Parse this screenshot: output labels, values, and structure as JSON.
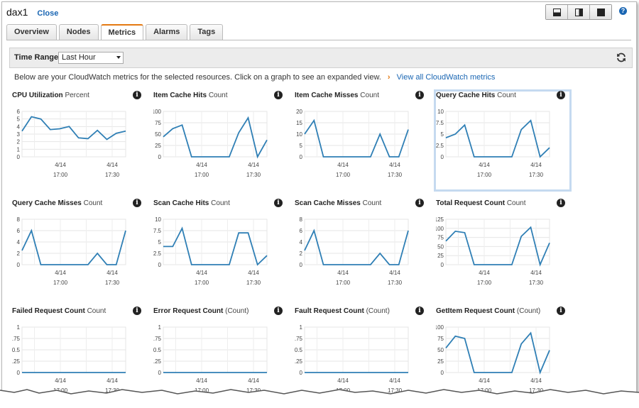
{
  "header": {
    "resource_name": "dax1",
    "close_label": "Close"
  },
  "view_buttons": [
    "bottom-pane-icon",
    "side-pane-icon",
    "full-screen-icon"
  ],
  "tabs": [
    {
      "label": "Overview",
      "active": false
    },
    {
      "label": "Nodes",
      "active": false
    },
    {
      "label": "Metrics",
      "active": true
    },
    {
      "label": "Alarms",
      "active": false
    },
    {
      "label": "Tags",
      "active": false
    }
  ],
  "toolbar": {
    "time_range_label": "Time Range:",
    "time_range_value": "Last Hour"
  },
  "info": {
    "text": "Below are your CloudWatch metrics for the selected resources. Click on a graph to see an expanded view.",
    "chevron": "›",
    "link": "View all CloudWatch metrics"
  },
  "colors": {
    "line": "#2f7fb5",
    "accent": "#e47911",
    "link": "#1a66b3",
    "selected_outline": "#c5daf0"
  },
  "x_ticks": [
    {
      "date": "4/14",
      "time": "17:00"
    },
    {
      "date": "4/14",
      "time": "17:30"
    }
  ],
  "chart_data": [
    {
      "type": "line",
      "title": "CPU Utilization",
      "unit": "Percent",
      "ylim": [
        0,
        6
      ],
      "yticks": [
        "0",
        "1",
        "2",
        "3",
        "4",
        "5",
        "6"
      ],
      "values": [
        3.4,
        5.3,
        5.0,
        3.6,
        3.7,
        4.0,
        2.5,
        2.4,
        3.5,
        2.3,
        3.1,
        3.4
      ]
    },
    {
      "type": "line",
      "title": "Item Cache Hits",
      "unit": "Count",
      "ylim": [
        0,
        100
      ],
      "yticks": [
        "0",
        "25",
        "50",
        "75",
        "100"
      ],
      "values": [
        44,
        62,
        70,
        0,
        0,
        0,
        0,
        0,
        53,
        86,
        0,
        37
      ]
    },
    {
      "type": "line",
      "title": "Item Cache Misses",
      "unit": "Count",
      "ylim": [
        0,
        20
      ],
      "yticks": [
        "0",
        "5",
        "10",
        "15",
        "20"
      ],
      "values": [
        10,
        16,
        0,
        0,
        0,
        0,
        0,
        0,
        10,
        0,
        0,
        12
      ]
    },
    {
      "type": "line",
      "title": "Query Cache Hits",
      "unit": "Count",
      "ylim": [
        0,
        10
      ],
      "yticks": [
        "0",
        "2.5",
        "5",
        "7.5",
        "10"
      ],
      "selected": true,
      "values": [
        4.2,
        5.0,
        7.0,
        0,
        0,
        0,
        0,
        0,
        6.0,
        8.0,
        0,
        2.0
      ]
    },
    {
      "type": "line",
      "title": "Query Cache Misses",
      "unit": "Count",
      "ylim": [
        0,
        8
      ],
      "yticks": [
        "0",
        "2",
        "4",
        "6",
        "8"
      ],
      "values": [
        2.5,
        6.0,
        0,
        0,
        0,
        0,
        0,
        0,
        2.0,
        0,
        0,
        6.0
      ]
    },
    {
      "type": "line",
      "title": "Scan Cache Hits",
      "unit": "Count",
      "ylim": [
        0,
        10
      ],
      "yticks": [
        "0",
        "2.5",
        "5",
        "7.5",
        "10"
      ],
      "values": [
        4.0,
        4.0,
        8.0,
        0,
        0,
        0,
        0,
        0,
        7.0,
        7.0,
        0,
        2.0
      ]
    },
    {
      "type": "line",
      "title": "Scan Cache Misses",
      "unit": "Count",
      "ylim": [
        0,
        8
      ],
      "yticks": [
        "0",
        "2",
        "4",
        "6",
        "8"
      ],
      "values": [
        2.5,
        6.0,
        0,
        0,
        0,
        0,
        0,
        0,
        2.0,
        0,
        0,
        6.0
      ]
    },
    {
      "type": "line",
      "title": "Total Request Count",
      "unit": "Count",
      "ylim": [
        0,
        125
      ],
      "yticks": [
        "0",
        "25",
        "50",
        "75",
        "100",
        "125"
      ],
      "values": [
        65,
        92,
        88,
        0,
        0,
        0,
        0,
        0,
        78,
        103,
        0,
        60
      ]
    },
    {
      "type": "line",
      "title": "Failed Request Count",
      "unit": "Count",
      "ylim": [
        0,
        1
      ],
      "yticks": [
        "0",
        "0.25",
        "0.5",
        "0.75",
        "1"
      ],
      "values": [
        0,
        0,
        0,
        0,
        0,
        0,
        0,
        0,
        0,
        0,
        0,
        0
      ]
    },
    {
      "type": "line",
      "title": "Error Request Count",
      "unit": "(Count)",
      "ylim": [
        0,
        1
      ],
      "yticks": [
        "0",
        "0.25",
        "0.5",
        "0.75",
        "1"
      ],
      "values": [
        0,
        0,
        0,
        0,
        0,
        0,
        0,
        0,
        0,
        0,
        0,
        0
      ]
    },
    {
      "type": "line",
      "title": "Fault Request Count",
      "unit": "(Count)",
      "ylim": [
        0,
        1
      ],
      "yticks": [
        "0",
        "0.25",
        "0.5",
        "0.75",
        "1"
      ],
      "values": [
        0,
        0,
        0,
        0,
        0,
        0,
        0,
        0,
        0,
        0,
        0,
        0
      ]
    },
    {
      "type": "line",
      "title": "GetItem Request Count",
      "unit": "(Count)",
      "ylim": [
        0,
        100
      ],
      "yticks": [
        "0",
        "25",
        "50",
        "75",
        "100"
      ],
      "values": [
        54,
        80,
        75,
        0,
        0,
        0,
        0,
        0,
        63,
        87,
        0,
        49
      ]
    }
  ]
}
